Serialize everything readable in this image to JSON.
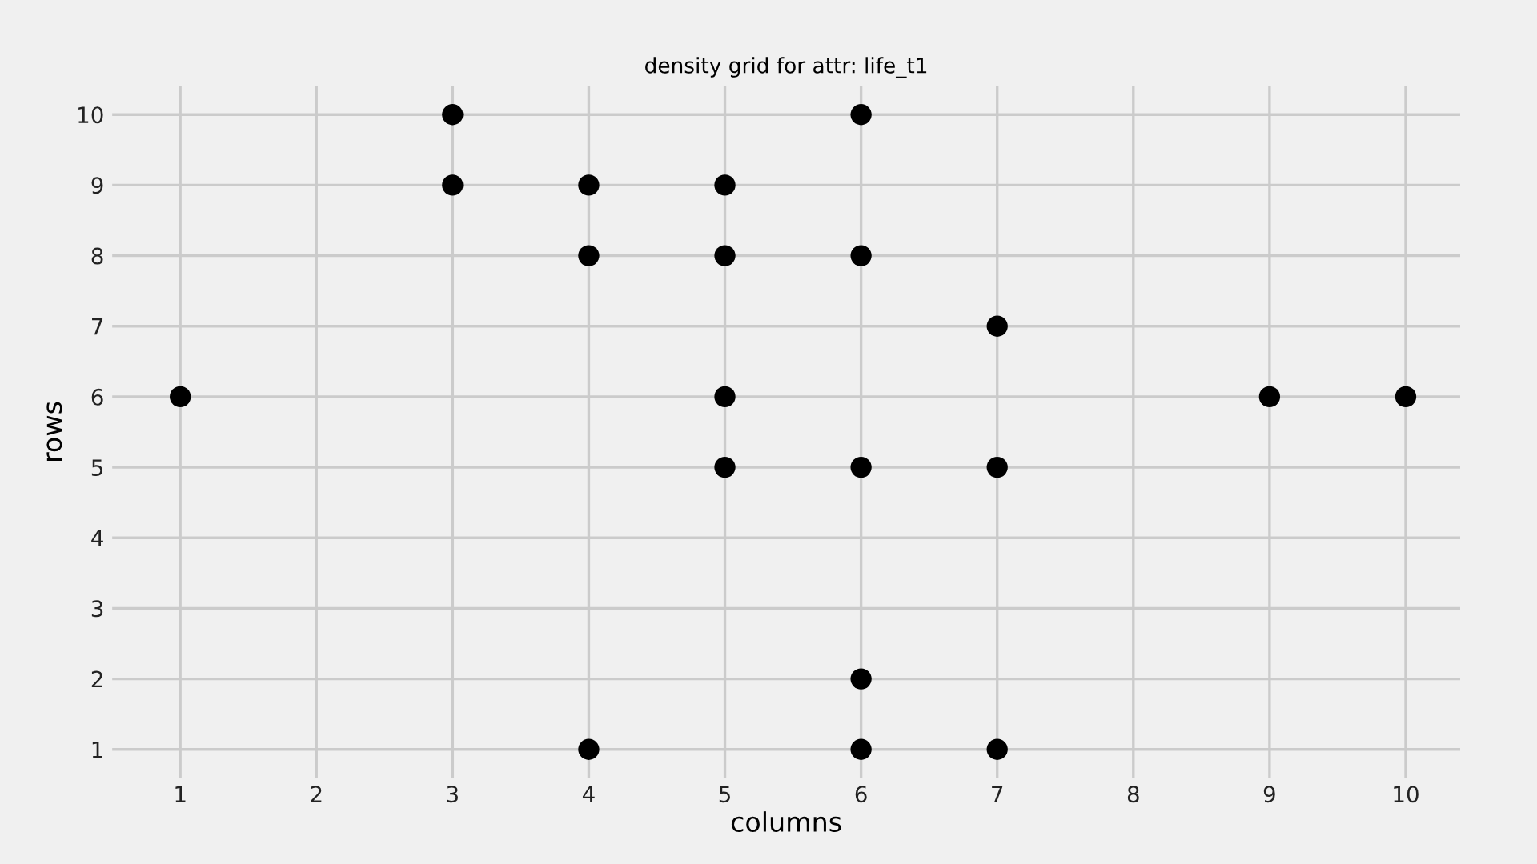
{
  "chart_data": {
    "type": "scatter",
    "title": "density grid for attr: life_t1",
    "xlabel": "columns",
    "ylabel": "rows",
    "x": [
      3,
      6,
      3,
      4,
      5,
      4,
      5,
      6,
      7,
      1,
      5,
      9,
      10,
      5,
      6,
      7,
      6,
      4,
      6,
      7
    ],
    "values": [
      10,
      10,
      9,
      9,
      9,
      8,
      8,
      8,
      7,
      6,
      6,
      6,
      6,
      5,
      5,
      5,
      2,
      1,
      1,
      1
    ],
    "color": "#000000",
    "marker": "circle",
    "xlim": [
      0.5,
      10.4
    ],
    "xticks": [
      1,
      2,
      3,
      4,
      5,
      6,
      7,
      8,
      9,
      10
    ],
    "ylim": [
      0.6,
      10.4
    ],
    "yticks": [
      1,
      2,
      3,
      4,
      5,
      6,
      7,
      8,
      9,
      10
    ],
    "grid": true
  }
}
